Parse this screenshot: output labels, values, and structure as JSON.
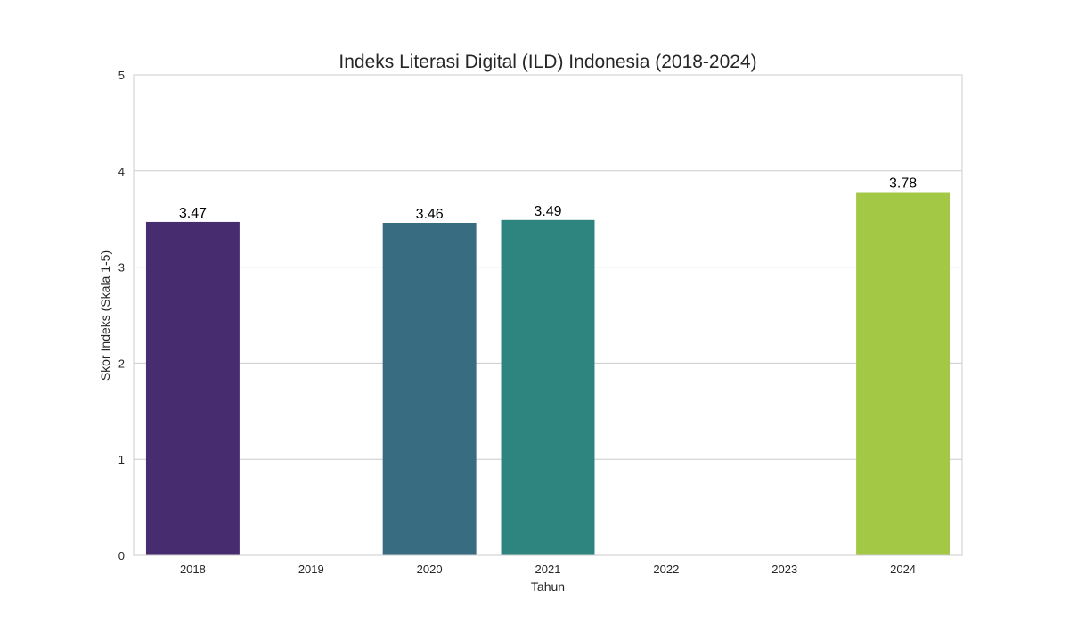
{
  "chart_data": {
    "type": "bar",
    "title": "Indeks Literasi Digital (ILD) Indonesia (2018-2024)",
    "xlabel": "Tahun",
    "ylabel": "Skor Indeks (Skala 1-5)",
    "categories": [
      "2018",
      "2019",
      "2020",
      "2021",
      "2022",
      "2023",
      "2024"
    ],
    "values": [
      3.47,
      null,
      3.46,
      3.49,
      null,
      null,
      3.78
    ],
    "data_labels": [
      "3.47",
      "",
      "3.46",
      "3.49",
      "",
      "",
      "3.78"
    ],
    "colors": [
      "#482c70",
      null,
      "#386c80",
      "#2e847e",
      null,
      null,
      "#a3c845"
    ],
    "ylim": [
      0,
      5
    ],
    "yticks": [
      "0",
      "1",
      "2",
      "3",
      "4",
      "5"
    ],
    "grid": true,
    "legend": "none"
  }
}
